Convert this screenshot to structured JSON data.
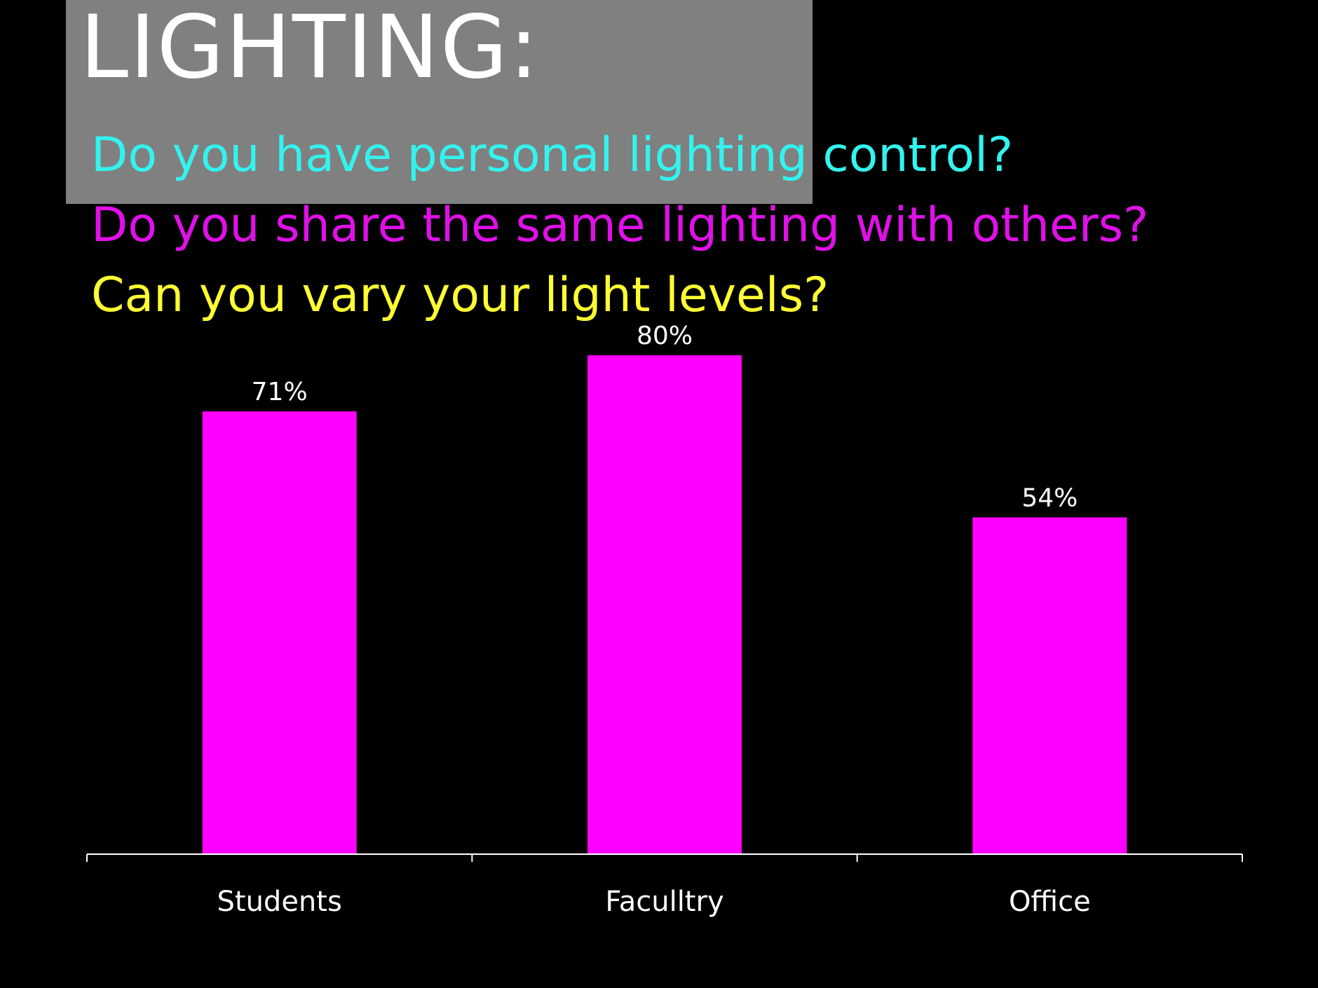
{
  "slide": {
    "title": "LIGHTING:",
    "questions": [
      {
        "text": "Do you have personal lighting control?",
        "color": "#33f3ef"
      },
      {
        "text": "Do you share the same lighting with others?",
        "color": "#e010e8"
      },
      {
        "text": "Can you vary your light levels?",
        "color": "#ffff33"
      }
    ]
  },
  "colors": {
    "background": "#000000",
    "title_box": "#808080",
    "title_text": "#ffffff",
    "bar": "#ff00ff",
    "axis": "#ffffff",
    "labels": "#ffffff"
  },
  "chart_data": {
    "type": "bar",
    "categories": [
      "Students",
      "Faculltry",
      "Office"
    ],
    "values": [
      71,
      80,
      54
    ],
    "data_labels": [
      "71%",
      "80%",
      "54%"
    ],
    "ylim": [
      0,
      100
    ],
    "grid": false,
    "legend": "none"
  }
}
